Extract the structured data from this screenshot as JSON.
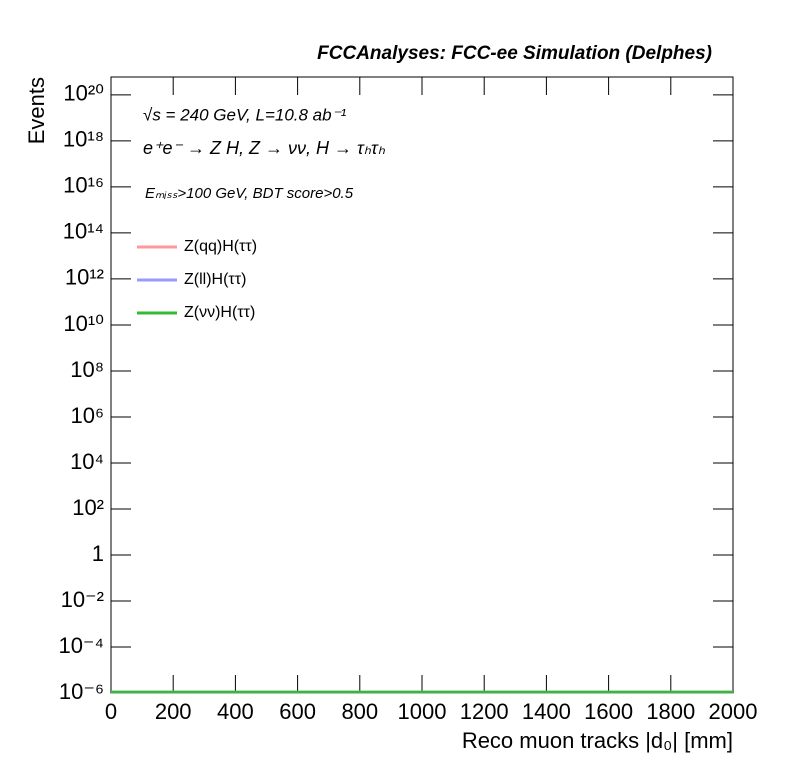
{
  "chart_data": {
    "type": "line",
    "title": "FCCAnalyses: FCC-ee Simulation (Delphes)",
    "annotations": [
      "√s = 240 GeV, L=10.8 ab⁻¹",
      "e⁺e⁻ → Z H, Z → νν, H → τₕτₕ",
      "Eₘᵢₛₛ>100 GeV, BDT score>0.5"
    ],
    "x_label": "Reco muon tracks |d₀| [mm]",
    "y_label": "Events",
    "x": [
      0,
      2000
    ],
    "series": [
      {
        "name": "Z(qq)H(ττ)",
        "color": "#ff9999",
        "values": [
          1e-06,
          1e-06
        ]
      },
      {
        "name": "Z(ll)H(ττ)",
        "color": "#9999ff",
        "values": [
          1e-06,
          1e-06
        ]
      },
      {
        "name": "Z(νν)H(ττ)",
        "color": "#33bb33",
        "values": [
          1e-06,
          1e-06
        ]
      }
    ],
    "xlim": [
      0,
      2000
    ],
    "xticks": [
      0,
      200,
      400,
      600,
      800,
      1000,
      1200,
      1400,
      1600,
      1800,
      2000
    ],
    "ylim": [
      1e-06,
      6e+20
    ],
    "log_y": true,
    "yticks": [
      {
        "value": 1e-06,
        "label": "10⁻⁶"
      },
      {
        "value": 0.0001,
        "label": "10⁻⁴"
      },
      {
        "value": 0.01,
        "label": "10⁻²"
      },
      1,
      {
        "value": 100,
        "label": "10²"
      },
      {
        "value": 10000,
        "label": "10⁴"
      },
      {
        "value": 1000000.0,
        "label": "10⁶"
      },
      {
        "value": 100000000.0,
        "label": "10⁸"
      },
      {
        "value": 10000000000.0,
        "label": "10¹⁰"
      },
      {
        "value": 1000000000000.0,
        "label": "10¹²"
      },
      {
        "value": 100000000000000.0,
        "label": "10¹⁴"
      },
      {
        "value": 1e+16,
        "label": "10¹⁶"
      },
      {
        "value": 1e+18,
        "label": "10¹⁸"
      },
      {
        "value": 1e+20,
        "label": "10²⁰"
      }
    ],
    "grid": false,
    "legend": "upper left"
  }
}
